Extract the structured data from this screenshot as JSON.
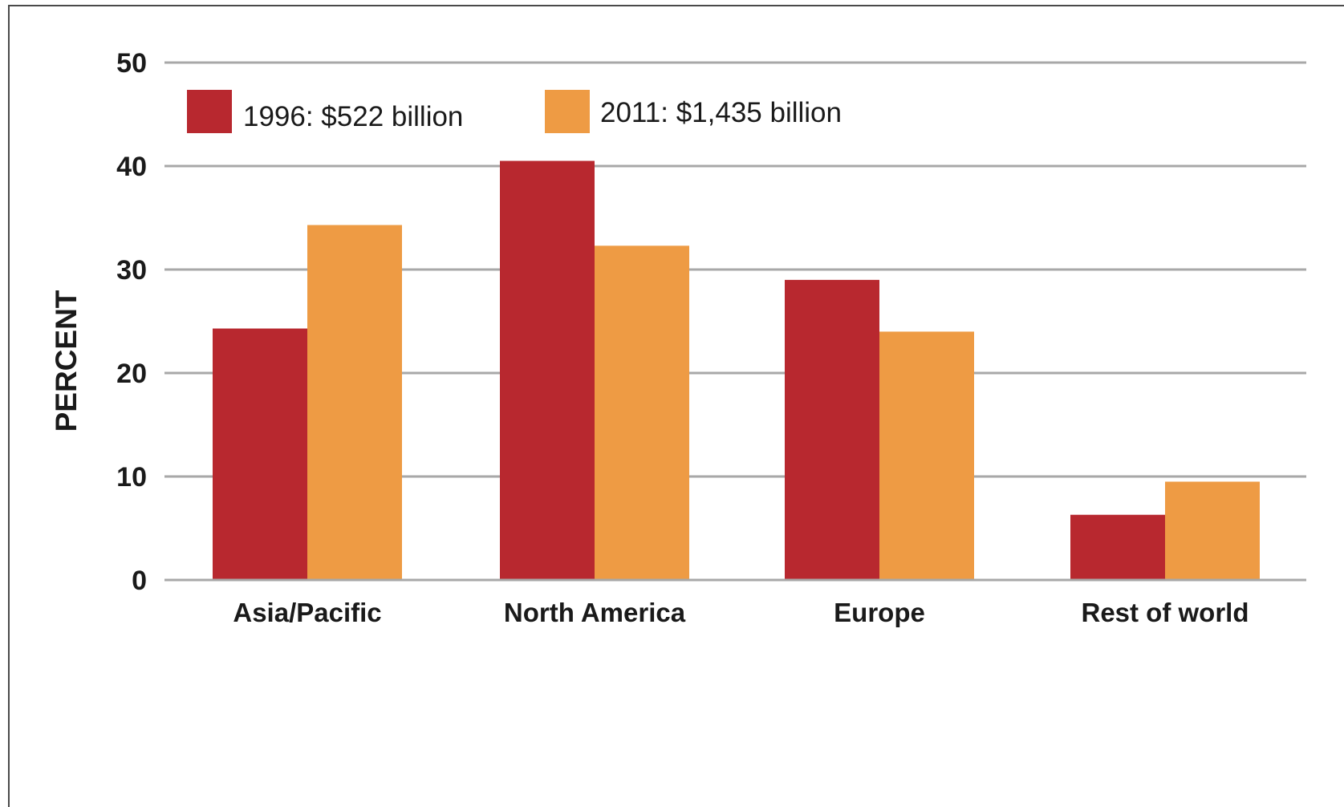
{
  "chart_data": {
    "type": "bar",
    "ylabel": "PERCENT",
    "xlabel": "",
    "ylim": [
      0,
      50
    ],
    "yticks": [
      "0",
      "10",
      "20",
      "30",
      "40",
      "50"
    ],
    "grid": true,
    "legend_position": "top-left",
    "categories": [
      "Asia/Pacific",
      "North America",
      "Europe",
      "Rest of world"
    ],
    "series": [
      {
        "name": "1996: $522 billion",
        "color": "#b8282f",
        "values": [
          24.3,
          40.5,
          29.0,
          6.3
        ]
      },
      {
        "name": "2011: $1,435 billion",
        "color": "#ee9b44",
        "values": [
          34.3,
          32.3,
          24.0,
          9.5
        ]
      }
    ]
  }
}
